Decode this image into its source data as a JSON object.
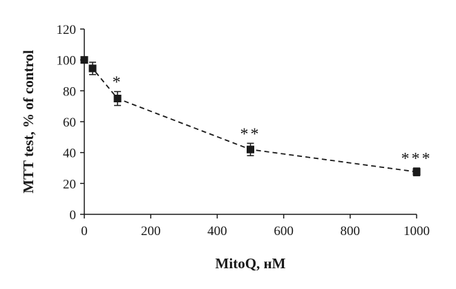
{
  "chart_data": {
    "type": "line",
    "title": "",
    "xlabel": "MitoQ, нM",
    "ylabel": "MTT test, % of control",
    "xlim": [
      0,
      1000
    ],
    "ylim": [
      0,
      120
    ],
    "x_ticks": [
      "0",
      "200",
      "400",
      "600",
      "800",
      "1000"
    ],
    "y_ticks": [
      "0",
      "20",
      "40",
      "60",
      "80",
      "100",
      "120"
    ],
    "grid": false,
    "line_style": "dashed",
    "marker": "square",
    "color": "#1a1a1a",
    "points": [
      {
        "x": 0,
        "y": 100,
        "err": 0,
        "annotation": ""
      },
      {
        "x": 25,
        "y": 94.5,
        "err": 4,
        "annotation": ""
      },
      {
        "x": 100,
        "y": 75,
        "err": 4.5,
        "annotation": "*"
      },
      {
        "x": 500,
        "y": 42,
        "err": 4,
        "annotation": "**"
      },
      {
        "x": 1000,
        "y": 27.5,
        "err": 2.5,
        "annotation": "***"
      }
    ]
  }
}
